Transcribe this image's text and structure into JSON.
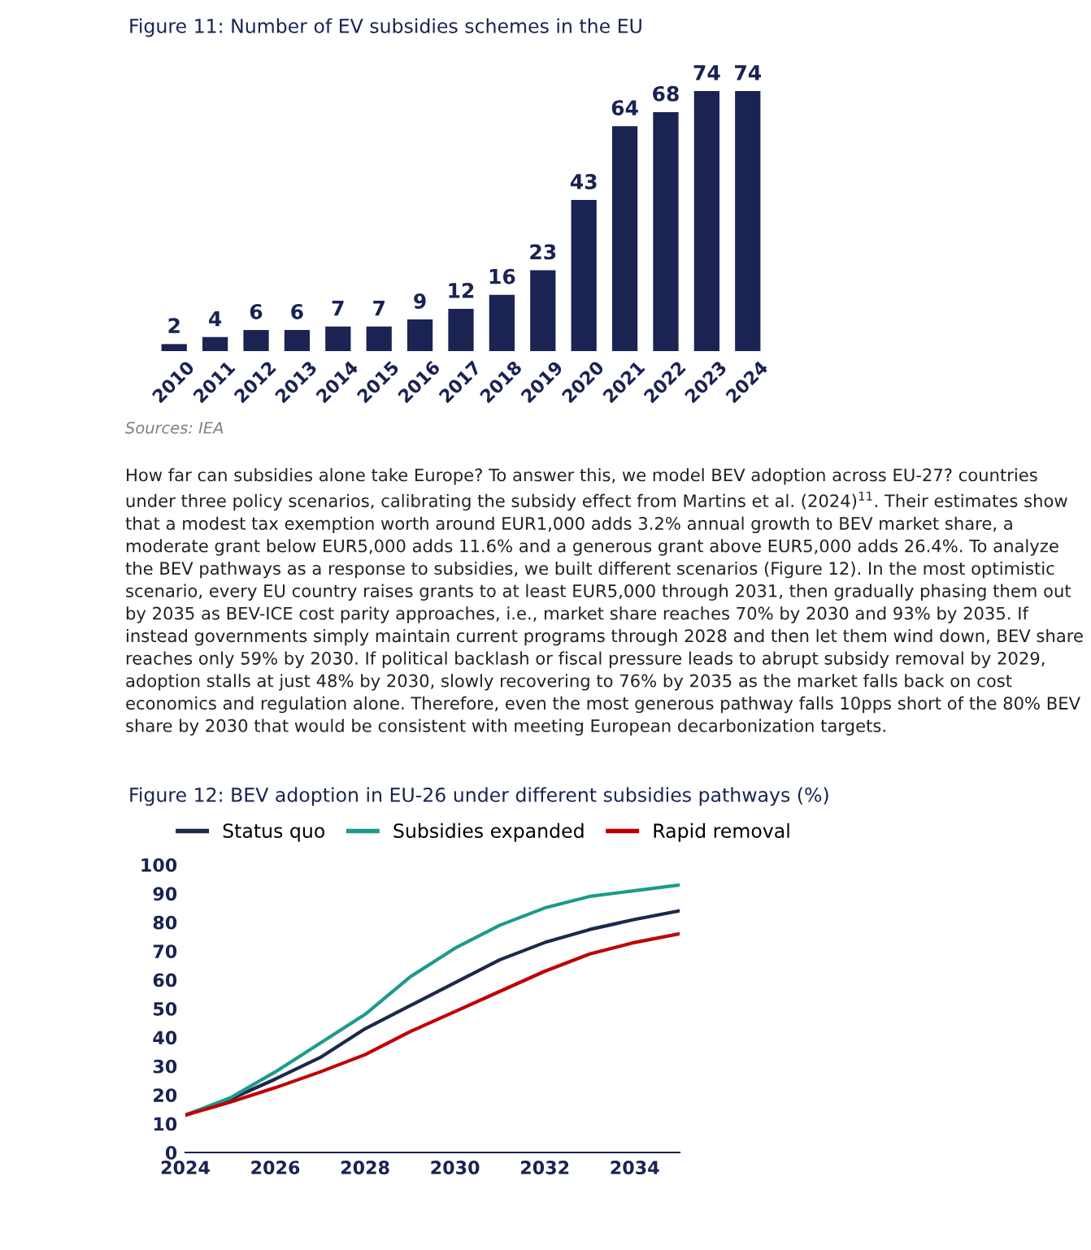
{
  "chart_data": [
    {
      "type": "bar",
      "title": "Figure 11: Number of EV subsidies schemes in the EU",
      "categories": [
        "2010",
        "2011",
        "2012",
        "2013",
        "2014",
        "2015",
        "2016",
        "2017",
        "2018",
        "2019",
        "2020",
        "2021",
        "2022",
        "2023",
        "2024"
      ],
      "values": [
        2,
        4,
        6,
        6,
        7,
        7,
        9,
        12,
        16,
        23,
        43,
        64,
        68,
        74,
        74
      ],
      "color": "#1a2352",
      "data_labels": true,
      "annotations": [
        "Sources: IEA",
        "How far can subsidies alone take Europe? To answer this, we model BEV adoption across EU-27? countries under three policy scenarios, calibrating the subsidy effect from Martins et al. (2024)$^{11}$. Their estimates show that a modest tax exemption worth around EUR1,000 adds 3.2% annual growth to BEV market share, a moderate grant below EUR5,000 adds 11.6% and a generous grant above EUR5,000 adds 26.4%. To analyze the BEV pathways as a response to subsidies, we built different scenarios (Figure 12). In the most optimistic scenario, every EU country raises grants to at least EUR5,000 through 2031, then gradually phasing them out by 2035 as BEV-ICE cost parity approaches, i.e., market share reaches 70% by 2030 and 93% by 2035. If instead governments simply maintain current programs through 2028 and then let them wind down, BEV share reaches only 59% by 2030. If political backlash or fiscal pressure leads to abrupt subsidy removal by 2029, adoption stalls at just 48% by 2030, slowly recovering to 76% by 2035 as the market falls back on cost economics and regulation alone. Therefore, even the most generous pathway falls 10pps short of the 80% BEV share by 2030 that would be consistent with meeting European decarbonization targets."
      ]
    },
    {
      "type": "line",
      "title": "Figure 12: BEV adoption in EU-26 under different subsidies pathways (%)",
      "x": [
        2024,
        2025,
        2026,
        2027,
        2028,
        2029,
        2030,
        2031,
        2032,
        2033,
        2034,
        2035
      ],
      "series": [
        {
          "name": "Status quo",
          "color": "#1b2a4a",
          "values": [
            13,
            18.5,
            25.5,
            33,
            43,
            51,
            59,
            67,
            73,
            77.5,
            81,
            84
          ]
        },
        {
          "name": "Subsidies expanded",
          "color": "#1e9a8c",
          "values": [
            13,
            19,
            28,
            38,
            48,
            61,
            71,
            79,
            85,
            89,
            91,
            93
          ]
        },
        {
          "name": "Rapid removal",
          "color": "#c00000",
          "values": [
            13,
            17.5,
            22.5,
            28,
            34,
            42,
            49,
            56,
            63,
            69,
            73,
            76
          ]
        }
      ],
      "xlim": [
        2024,
        2035
      ],
      "xticks": [
        2024,
        2026,
        2028,
        2030,
        2032,
        2034
      ],
      "ylim": [
        0,
        100
      ],
      "yticks": [
        0,
        10,
        20,
        30,
        40,
        50,
        60,
        70,
        80,
        90,
        100
      ],
      "legend": "top",
      "grid": false
    }
  ]
}
